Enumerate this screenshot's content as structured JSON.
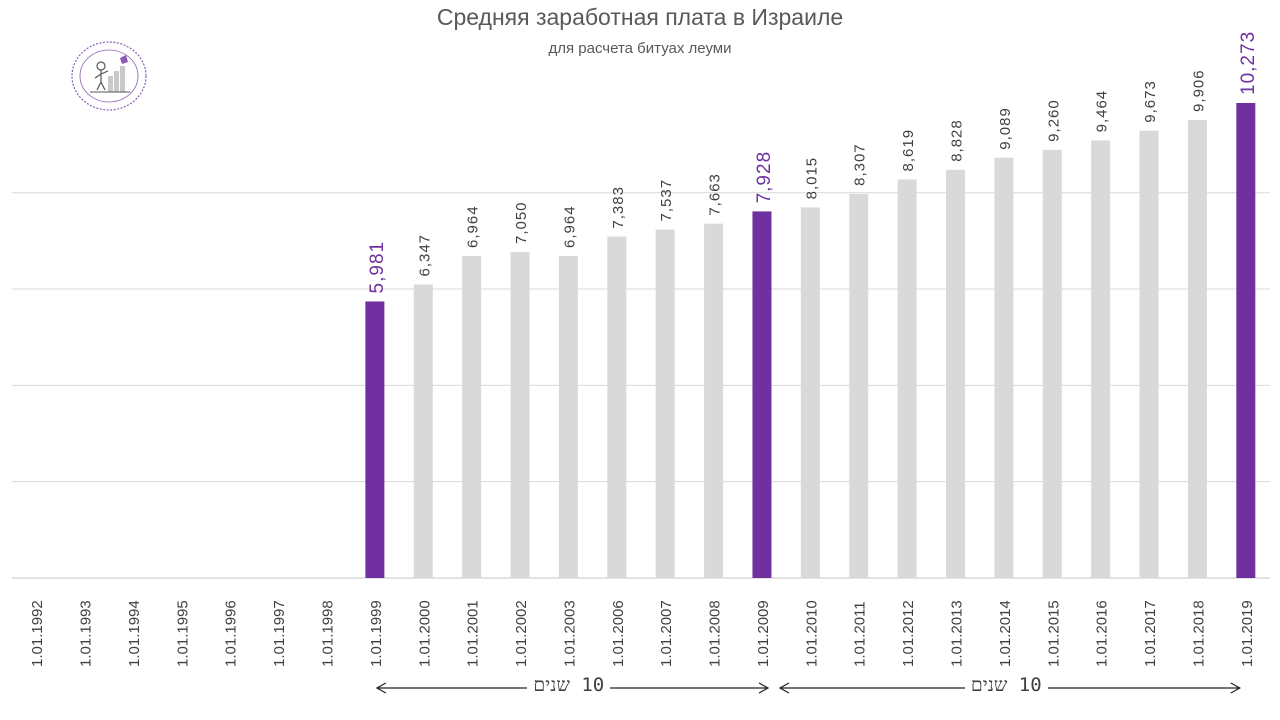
{
  "chart_data": {
    "type": "bar",
    "title": "Средняя заработная плата в Израиле",
    "subtitle": "для расчета битуах леуми",
    "categories": [
      "1.01.1992",
      "1.01.1993",
      "1.01.1994",
      "1.01.1995",
      "1.01.1996",
      "1.01.1997",
      "1.01.1998",
      "1.01.1999",
      "1.01.2000",
      "1.01.2001",
      "1.01.2002",
      "1.01.2003",
      "1.01.2006",
      "1.01.2007",
      "1.01.2008",
      "1.01.2009",
      "1.01.2010",
      "1.01.2011",
      "1.01.2012",
      "1.01.2013",
      "1.01.2014",
      "1.01.2015",
      "1.01.2016",
      "1.01.2017",
      "1.01.2018",
      "1.01.2019"
    ],
    "values": [
      null,
      null,
      null,
      null,
      null,
      null,
      null,
      5981,
      6347,
      6964,
      7050,
      6964,
      7383,
      7537,
      7663,
      7928,
      8015,
      8307,
      8619,
      8828,
      9089,
      9260,
      9464,
      9673,
      9906,
      10273
    ],
    "value_labels": [
      "",
      "",
      "",
      "",
      "",
      "",
      "",
      "5,981",
      "6,347",
      "6,964",
      "7,050",
      "6,964",
      "7,383",
      "7,537",
      "7,663",
      "7,928",
      "8,015",
      "8,307",
      "8,619",
      "8,828",
      "9,089",
      "9,260",
      "9,464",
      "9,673",
      "9,906",
      "10,273"
    ],
    "highlighted_categories": [
      "1.01.1999",
      "1.01.2009",
      "1.01.2019"
    ],
    "ylim": [
      0,
      12500
    ],
    "gridline_step": 2083,
    "grid": true,
    "xlabel": "",
    "ylabel": "",
    "colors": {
      "bar": "#d9d9d9",
      "highlight": "#7030a0",
      "label": "#404040",
      "grid": "#d9d9d9"
    }
  },
  "annotations": {
    "span_1": {
      "label": "10 שנים",
      "from": "1.01.1999",
      "to": "1.01.2009"
    },
    "span_2": {
      "label": "10 שנים",
      "from": "1.01.2009",
      "to": "1.01.2019"
    }
  },
  "logo": {
    "icon": "stamp-logo-icon",
    "color": "#7030a0"
  }
}
